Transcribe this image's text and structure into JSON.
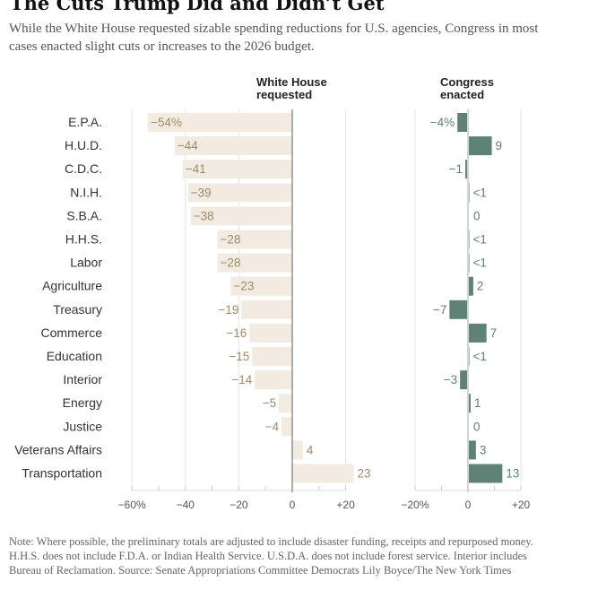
{
  "title": "The Cuts Trump Did and Didn’t Get",
  "subtitle": "While the White House requested sizable spending reductions for U.S. agencies, Congress in most cases enacted slight cuts or increases to the 2026 budget.",
  "note": "Note: Where possible, the preliminary totals are adjusted to include disaster funding, receipts and repurposed money. H.H.S. does not include F.D.A. or Indian Health Service. U.S.D.A. does not include forest service. Interior includes Bureau of Reclamation.  Source: Senate Appropriations Committee Democrats  Lily Boyce/The New York Times",
  "colors": {
    "white_house_bar": "#f1ebe1",
    "white_house_label": "#a08a6a",
    "congress_bar": "#5f8276",
    "grid": "#e6e6e6"
  },
  "chart_data": [
    {
      "type": "bar",
      "orientation": "horizontal",
      "header": [
        "White House",
        "requested"
      ],
      "categories": [
        "E.P.A.",
        "H.U.D.",
        "C.D.C.",
        "N.I.H.",
        "S.B.A.",
        "H.H.S.",
        "Labor",
        "Agriculture",
        "Treasury",
        "Commerce",
        "Education",
        "Interior",
        "Energy",
        "Justice",
        "Veterans Affairs",
        "Transportation"
      ],
      "values": [
        -54,
        -44,
        -41,
        -39,
        -38,
        -28,
        -28,
        -23,
        -19,
        -16,
        -15,
        -14,
        -5,
        -4,
        4,
        23
      ],
      "labels": [
        "−54%",
        "−44",
        "−41",
        "−39",
        "−38",
        "−28",
        "−28",
        "−23",
        "−19",
        "−16",
        "−15",
        "−14",
        "−5",
        "−4",
        "4",
        "23"
      ],
      "xlim": [
        -60,
        20
      ],
      "ticks": [
        -60,
        -40,
        -20,
        0,
        20
      ],
      "tick_labels": [
        "−60%",
        "−40",
        "−20",
        "0",
        "+20"
      ],
      "grid": true
    },
    {
      "type": "bar",
      "orientation": "horizontal",
      "header": [
        "Congress",
        "enacted"
      ],
      "categories": [
        "E.P.A.",
        "H.U.D.",
        "C.D.C.",
        "N.I.H.",
        "S.B.A.",
        "H.H.S.",
        "Labor",
        "Agriculture",
        "Treasury",
        "Commerce",
        "Education",
        "Interior",
        "Energy",
        "Justice",
        "Veterans Affairs",
        "Transportation"
      ],
      "values": [
        -4,
        9,
        -1,
        0.5,
        0,
        0.5,
        0.5,
        2,
        -7,
        7,
        0.5,
        -3,
        1,
        0,
        3,
        13
      ],
      "labels": [
        "−4%",
        "9",
        "−1",
        "<1",
        "0",
        "<1",
        "<1",
        "2",
        "−7",
        "7",
        "<1",
        "−3",
        "1",
        "0",
        "3",
        "13"
      ],
      "xlim": [
        -20,
        20
      ],
      "ticks": [
        -20,
        0,
        20
      ],
      "tick_labels": [
        "−20%",
        "0",
        "+20"
      ],
      "grid": true
    }
  ]
}
